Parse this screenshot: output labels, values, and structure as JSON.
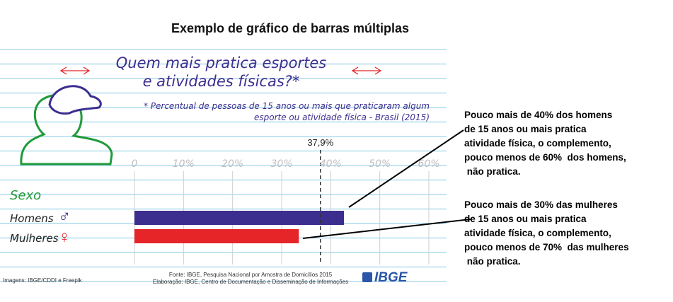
{
  "page_title": "Exemplo de gráfico de barras múltiplas",
  "chart_data": {
    "type": "bar",
    "orientation": "horizontal",
    "title": "Quem mais pratica esportes e atividades físicas?*",
    "subtitle": "* Percentual de pessoas de 15 anos ou mais que praticaram algum esporte ou atividade física - Brasil (2015)",
    "legend_title": "Sexo",
    "categories": [
      "Homens",
      "Mulheres"
    ],
    "values": [
      42.7,
      33.5
    ],
    "bar_colors": [
      "#3b2e8f",
      "#e52528"
    ],
    "xlim": [
      0,
      60
    ],
    "ticks": [
      "0",
      "10%",
      "20%",
      "30%",
      "40%",
      "50%",
      "60%"
    ],
    "reference_line": {
      "value": 37.9,
      "label": "37,9%"
    },
    "grid": true
  },
  "gender_icons": [
    "male-symbol",
    "female-symbol"
  ],
  "source": {
    "line1": "Fonte:  IBGE, Pesquisa Nacional por Amostra de Domicílios 2015",
    "line2": "Elaboração: IBGE, Centro de Documentação e Disseminação de Informações"
  },
  "logo_text": "IBGE",
  "image_credits": "Imagens: IBGE/CDDI e Freepik",
  "annotations": [
    "Pouco mais de 40% dos homens\nde 15 anos ou mais pratica\natividade física, o complemento,\npouco menos de 60%  dos homens,\n não pratica.",
    "Pouco mais de 30% das mulheres\nde 15 anos ou mais pratica\natividade física, o complemento,\npouco menos de 70%  das mulheres\n não pratica."
  ],
  "colors": {
    "title_purple": "#3c2f8f",
    "legend_green": "#1f9a3a",
    "notebook_line": "#9fd4ec"
  }
}
